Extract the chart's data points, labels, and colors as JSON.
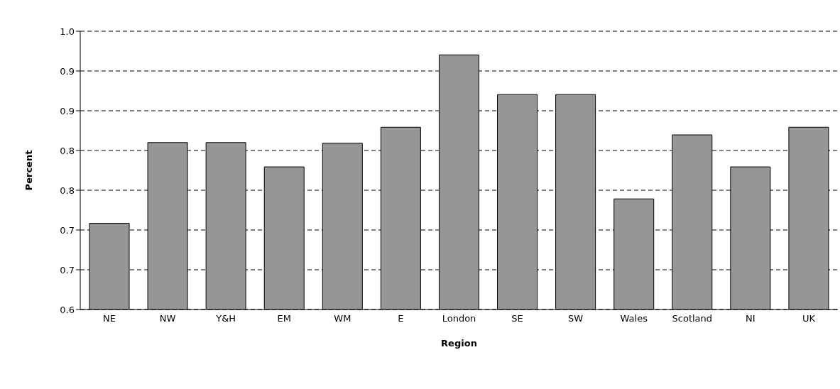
{
  "chart_data": {
    "type": "bar",
    "xlabel": "Region",
    "ylabel": "Percent",
    "categories": [
      "NE",
      "NW",
      "Y&H",
      "EM",
      "WM",
      "E",
      "London",
      "SE",
      "SW",
      "Wales",
      "Scotland",
      "NI",
      "UK"
    ],
    "values": [
      0.724,
      0.84,
      0.84,
      0.805,
      0.839,
      0.862,
      0.966,
      0.909,
      0.909,
      0.759,
      0.851,
      0.805,
      0.862
    ],
    "color": "#969696",
    "ylim": [
      0.6,
      1.0
    ],
    "yticks": [
      {
        "value": 0.6,
        "label": "0.6"
      },
      {
        "value": 0.6571,
        "label": "0.7"
      },
      {
        "value": 0.7143,
        "label": "0.7"
      },
      {
        "value": 0.7714,
        "label": "0.8"
      },
      {
        "value": 0.8286,
        "label": "0.8"
      },
      {
        "value": 0.8857,
        "label": "0.9"
      },
      {
        "value": 0.9429,
        "label": "0.9"
      },
      {
        "value": 1.0,
        "label": "1.0"
      }
    ],
    "grid": "y",
    "line_style": "dashed"
  }
}
